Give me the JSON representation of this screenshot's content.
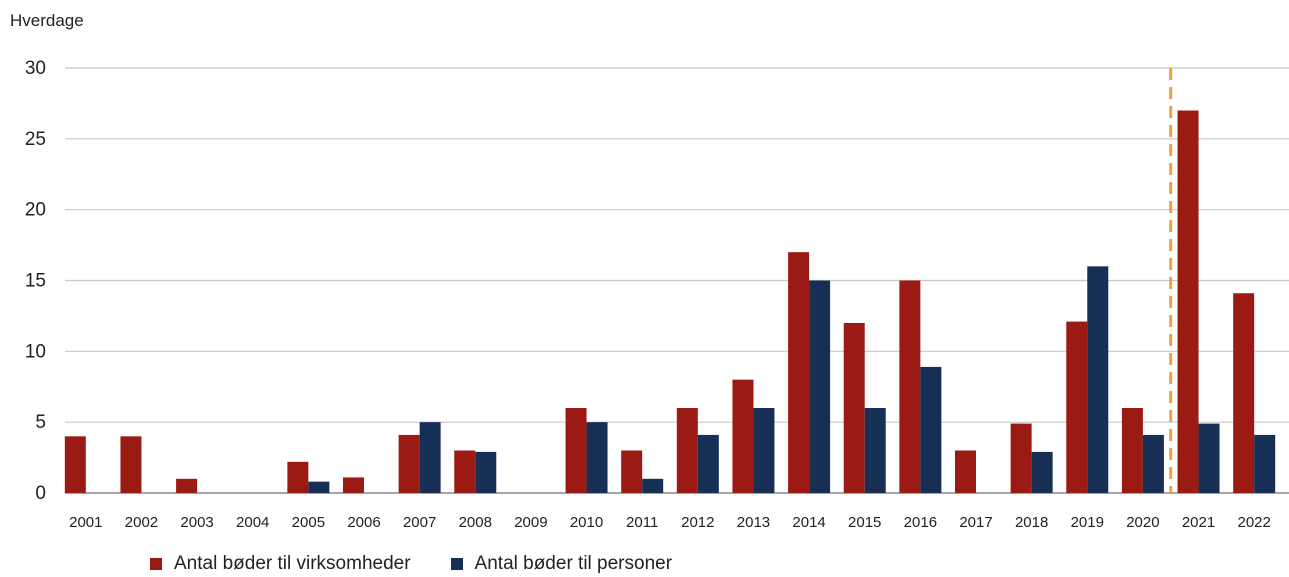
{
  "chart_data": {
    "type": "bar",
    "ylabel": "Hverdage",
    "xlabel": "",
    "title": "",
    "ylim": [
      0,
      30
    ],
    "yticks": [
      0,
      5,
      10,
      15,
      20,
      25,
      30
    ],
    "grid": true,
    "legend_position": "bottom",
    "categories": [
      "2001",
      "2002",
      "2003",
      "2004",
      "2005",
      "2006",
      "2007",
      "2008",
      "2009",
      "2010",
      "2011",
      "2012",
      "2013",
      "2014",
      "2015",
      "2016",
      "2017",
      "2018",
      "2019",
      "2020",
      "2021",
      "2022"
    ],
    "series": [
      {
        "name": "Antal bøder til virksomheder",
        "color": "#9b1b14",
        "values": [
          4,
          4,
          1,
          0,
          2.2,
          1.1,
          4.1,
          3,
          0,
          6,
          3,
          6,
          8,
          17,
          12,
          15,
          3,
          4.9,
          12.1,
          6,
          27,
          14.1
        ]
      },
      {
        "name": "Antal bøder til personer",
        "color": "#172f54",
        "values": [
          0,
          0,
          0,
          0,
          0.8,
          0,
          5,
          2.9,
          0,
          5,
          1,
          4.1,
          6,
          15,
          6,
          8.9,
          0,
          2.9,
          16,
          4.1,
          4.9,
          4.1
        ]
      }
    ],
    "reference_line": {
      "after_category": "2020",
      "color": "#f0a040",
      "style": "dashed"
    }
  }
}
